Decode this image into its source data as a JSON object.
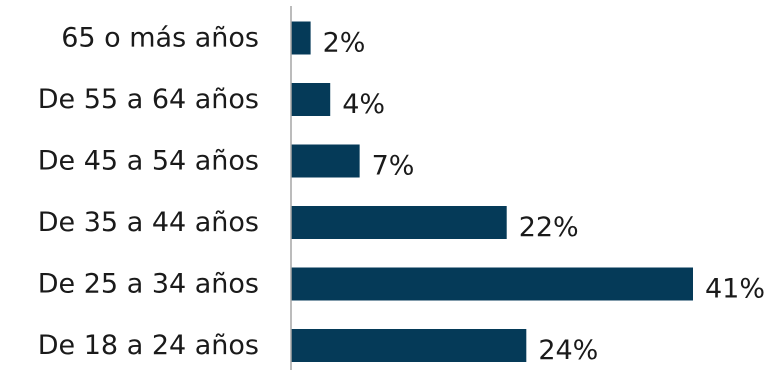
{
  "chart_data": {
    "type": "bar",
    "orientation": "horizontal",
    "categories": [
      "65 o más años",
      "De 55 a 64 años",
      "De 45 a 54 años",
      "De 35 a 44 años",
      "De 25 a 34 años",
      "De 18 a 24 años"
    ],
    "values": [
      2,
      4,
      7,
      22,
      41,
      24
    ],
    "value_labels": [
      "2%",
      "4%",
      "7%",
      "22%",
      "41%",
      "24%"
    ],
    "unit": "%",
    "xlim": [
      0,
      41
    ],
    "bar_color": "#053a58",
    "axis_color": "#a6a6a6",
    "gridlines": false,
    "legend": "none",
    "title": "",
    "xlabel": "",
    "ylabel": ""
  }
}
